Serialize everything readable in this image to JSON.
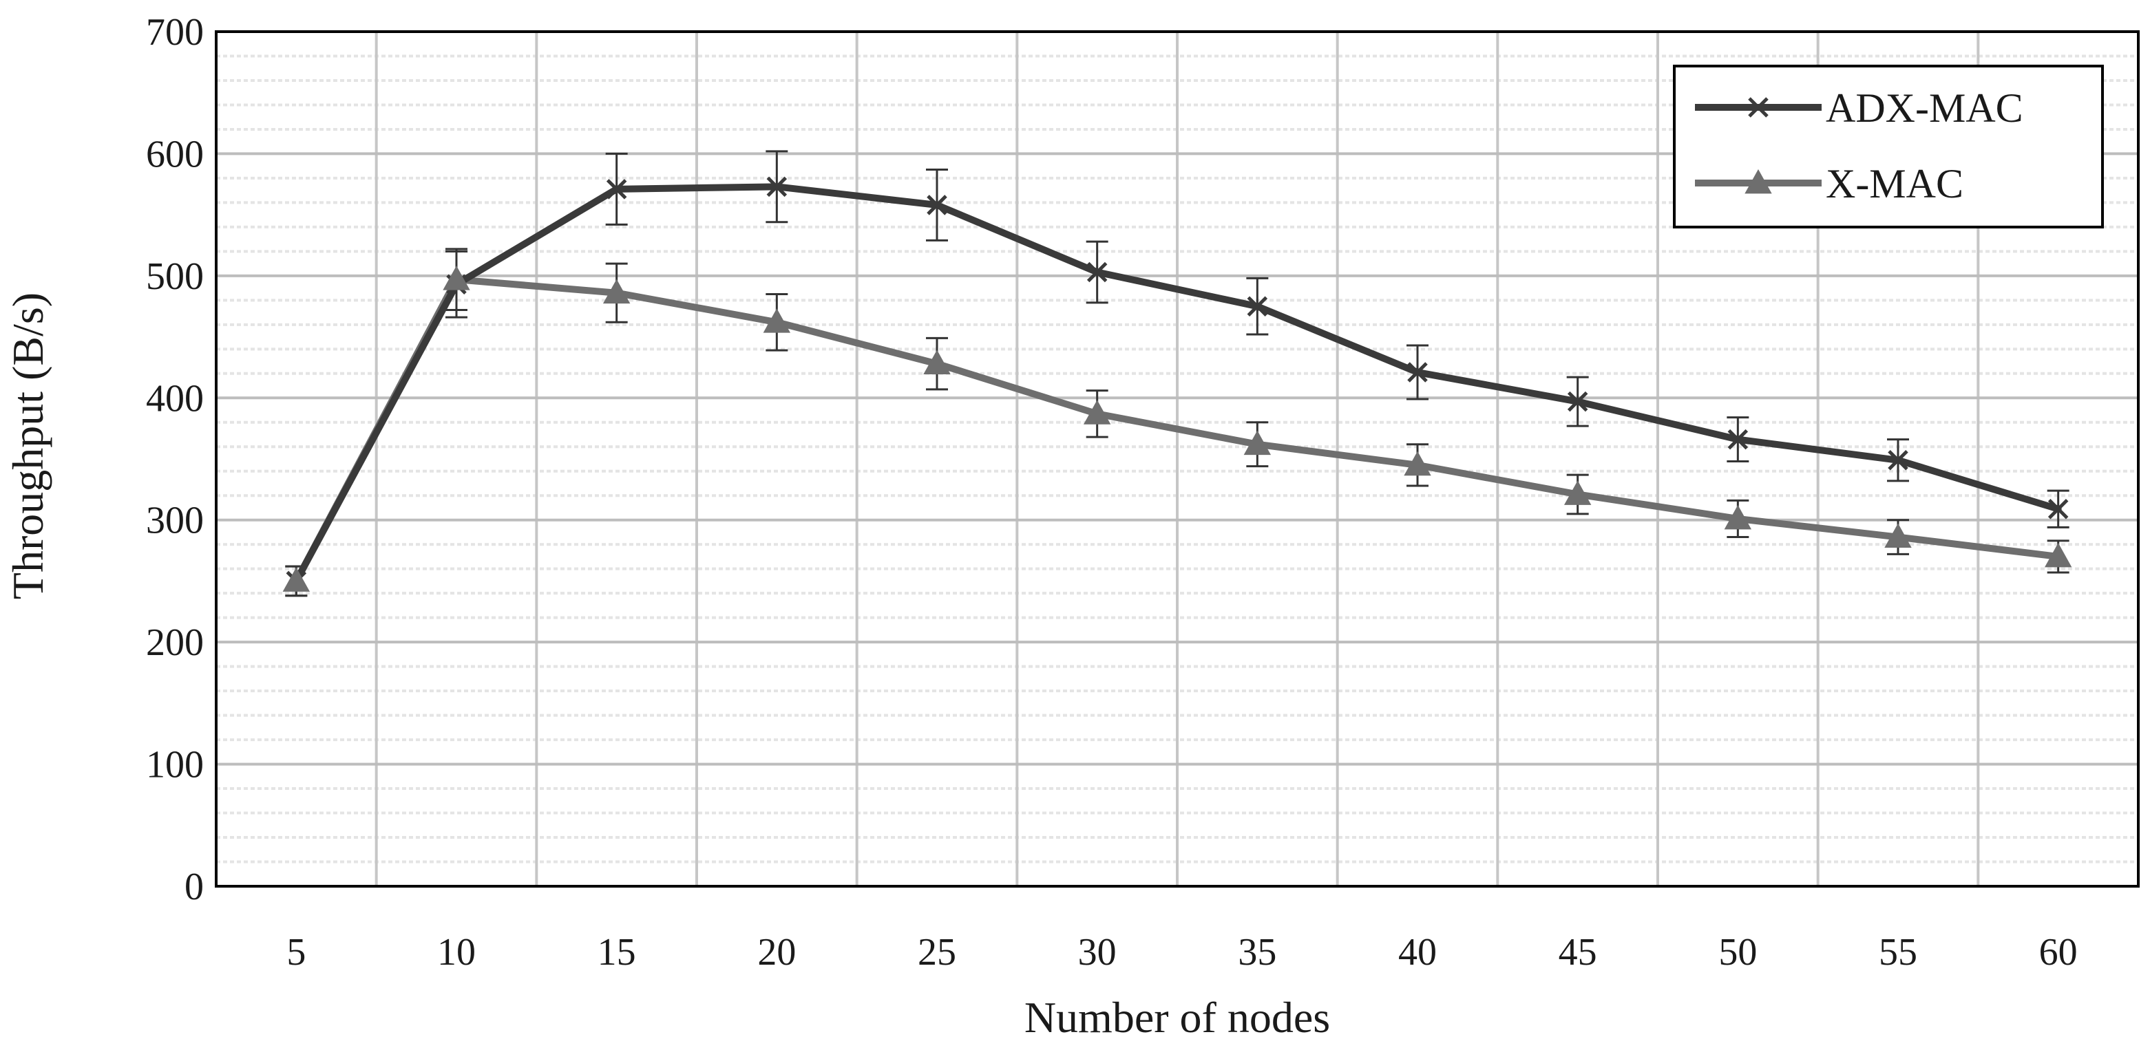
{
  "chart_data": {
    "type": "line",
    "title": "",
    "xlabel": "Number of nodes",
    "ylabel": "Throughput (B/s)",
    "x": [
      5,
      10,
      15,
      20,
      25,
      30,
      35,
      40,
      45,
      50,
      55,
      60
    ],
    "x_tick_labels": [
      "5",
      "10",
      "15",
      "20",
      "25",
      "30",
      "35",
      "40",
      "45",
      "50",
      "55",
      "60"
    ],
    "ylim": [
      0,
      700
    ],
    "y_ticks": [
      0,
      100,
      200,
      300,
      400,
      500,
      600,
      700
    ],
    "y_tick_labels": [
      "0",
      "100",
      "200",
      "300",
      "400",
      "500",
      "600",
      "700"
    ],
    "grid": true,
    "legend_position": "top-right",
    "series": [
      {
        "name": "ADX-MAC",
        "marker": "x",
        "color": "#3a3a3a",
        "values": [
          250,
          493,
          571,
          573,
          558,
          503,
          475,
          421,
          397,
          366,
          349,
          309
        ],
        "error": [
          12,
          27,
          29,
          29,
          29,
          25,
          23,
          22,
          20,
          18,
          17,
          15
        ]
      },
      {
        "name": "X-MAC",
        "marker": "triangle",
        "color": "#6e6e6e",
        "values": [
          250,
          497,
          486,
          462,
          428,
          387,
          362,
          345,
          321,
          301,
          286,
          270
        ],
        "error": [
          12,
          25,
          24,
          23,
          21,
          19,
          18,
          17,
          16,
          15,
          14,
          13
        ]
      }
    ]
  }
}
